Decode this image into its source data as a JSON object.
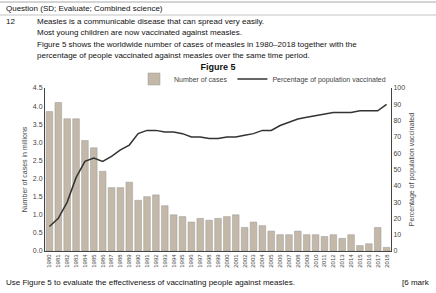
{
  "chart_data": {
    "type": "bar",
    "title": "Figure 5",
    "annotations": [
      "Question (SD; Evaluate; Combined science)",
      "12",
      "Measles is a communicable disease that can spread very easily.",
      "Most young children are now vaccinated against measles.",
      "Figure 5 shows the worldwide number of cases of measles in 1980–2018 together with the",
      "percentage of people vaccinated against measles over the same time period.",
      "Use Figure 5 to evaluate the effectiveness of vaccinating people against measles.",
      "[6 mark"
    ],
    "categories": [
      "1980",
      "1981",
      "1982",
      "1983",
      "1984",
      "1985",
      "1986",
      "1987",
      "1988",
      "1989",
      "1990",
      "1991",
      "1992",
      "1993",
      "1994",
      "1995",
      "1996",
      "1997",
      "1998",
      "1999",
      "2000",
      "2001",
      "2002",
      "2003",
      "2004",
      "2005",
      "2006",
      "2007",
      "2008",
      "2009",
      "2010",
      "2011",
      "2012",
      "2013",
      "2014",
      "2015",
      "2016",
      "2017",
      "2018"
    ],
    "series": [
      {
        "name": "Number of cases",
        "type": "bar",
        "color": "#c4b8a8",
        "values": [
          3.85,
          4.1,
          3.65,
          3.65,
          3.05,
          2.85,
          2.2,
          1.75,
          1.75,
          1.9,
          1.4,
          1.5,
          1.55,
          1.25,
          1.0,
          0.95,
          0.8,
          0.9,
          0.85,
          0.9,
          0.95,
          1.0,
          0.65,
          0.8,
          0.7,
          0.55,
          0.45,
          0.45,
          0.55,
          0.45,
          0.45,
          0.4,
          0.45,
          0.35,
          0.45,
          0.15,
          0.2,
          0.65,
          0.1
        ]
      },
      {
        "name": "Percentage of population vaccinated",
        "type": "line",
        "color": "#333333",
        "axis": "y2",
        "values": [
          15,
          20,
          30,
          45,
          55,
          57,
          55,
          58,
          62,
          65,
          72,
          74,
          74,
          73,
          73,
          72,
          70,
          70,
          69,
          69,
          70,
          70,
          71,
          72,
          74,
          74,
          77,
          79,
          81,
          82,
          83,
          84,
          85,
          85,
          85,
          86,
          86,
          86,
          90
        ]
      }
    ],
    "ylabel": "Number of cases in millions",
    "y2label": "Percentage of population vaccinated",
    "ylim": [
      0,
      4.5
    ],
    "yticks": [
      {
        "value": 0,
        "label": "0.0"
      },
      0.5,
      {
        "value": 1,
        "label": "1.0"
      },
      1.5,
      {
        "value": 2,
        "label": "2.0"
      },
      2.5,
      {
        "value": 3,
        "label": "3.0"
      },
      3.5,
      {
        "value": 4,
        "label": "4.0"
      },
      4.5
    ],
    "y2lim": [
      0,
      100
    ],
    "y2ticks": [
      0,
      10,
      20,
      30,
      40,
      50,
      60,
      70,
      80,
      90,
      100
    ],
    "grid": false,
    "legend": "upper right"
  }
}
